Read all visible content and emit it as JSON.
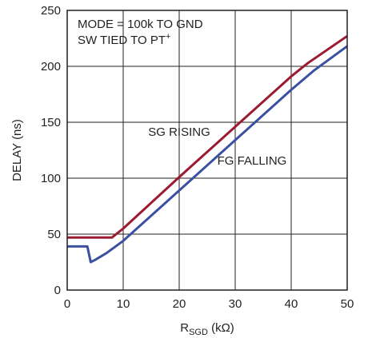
{
  "chart_data": {
    "type": "line",
    "xlabel_main": "R",
    "xlabel_sub": "SGD",
    "xlabel_unit": " (kΩ)",
    "ylabel": "DELAY (ns)",
    "xlim": [
      0,
      50
    ],
    "ylim": [
      0,
      250
    ],
    "x_ticks": [
      0,
      10,
      20,
      30,
      40,
      50
    ],
    "y_ticks": [
      0,
      50,
      100,
      150,
      200,
      250
    ],
    "x_tick_labels": [
      "0",
      "10",
      "20",
      "30",
      "40",
      "50"
    ],
    "y_tick_labels": [
      "0",
      "50",
      "100",
      "150",
      "200",
      "250"
    ],
    "grid": true,
    "annotation_line1": "MODE = 100k TO GND",
    "annotation_line2_main": "SW TIED TO PT",
    "annotation_line2_sup": "+",
    "series": [
      {
        "name": "SG RISING",
        "color": "#9b1b30",
        "points": [
          [
            0,
            47
          ],
          [
            8,
            47
          ],
          [
            10,
            55
          ],
          [
            20,
            101
          ],
          [
            30,
            146
          ],
          [
            40,
            191
          ],
          [
            43,
            203
          ],
          [
            50,
            227
          ]
        ]
      },
      {
        "name": "FG FALLING",
        "color": "#3a50a0",
        "points": [
          [
            0,
            39
          ],
          [
            3.6,
            39
          ],
          [
            4.2,
            25
          ],
          [
            5,
            27
          ],
          [
            7,
            33
          ],
          [
            10,
            44
          ],
          [
            20,
            89
          ],
          [
            30,
            134
          ],
          [
            40,
            179
          ],
          [
            44,
            196
          ],
          [
            50,
            218
          ]
        ]
      }
    ],
    "series_label_positions": [
      [
        20,
        138
      ],
      [
        33,
        112
      ]
    ]
  }
}
